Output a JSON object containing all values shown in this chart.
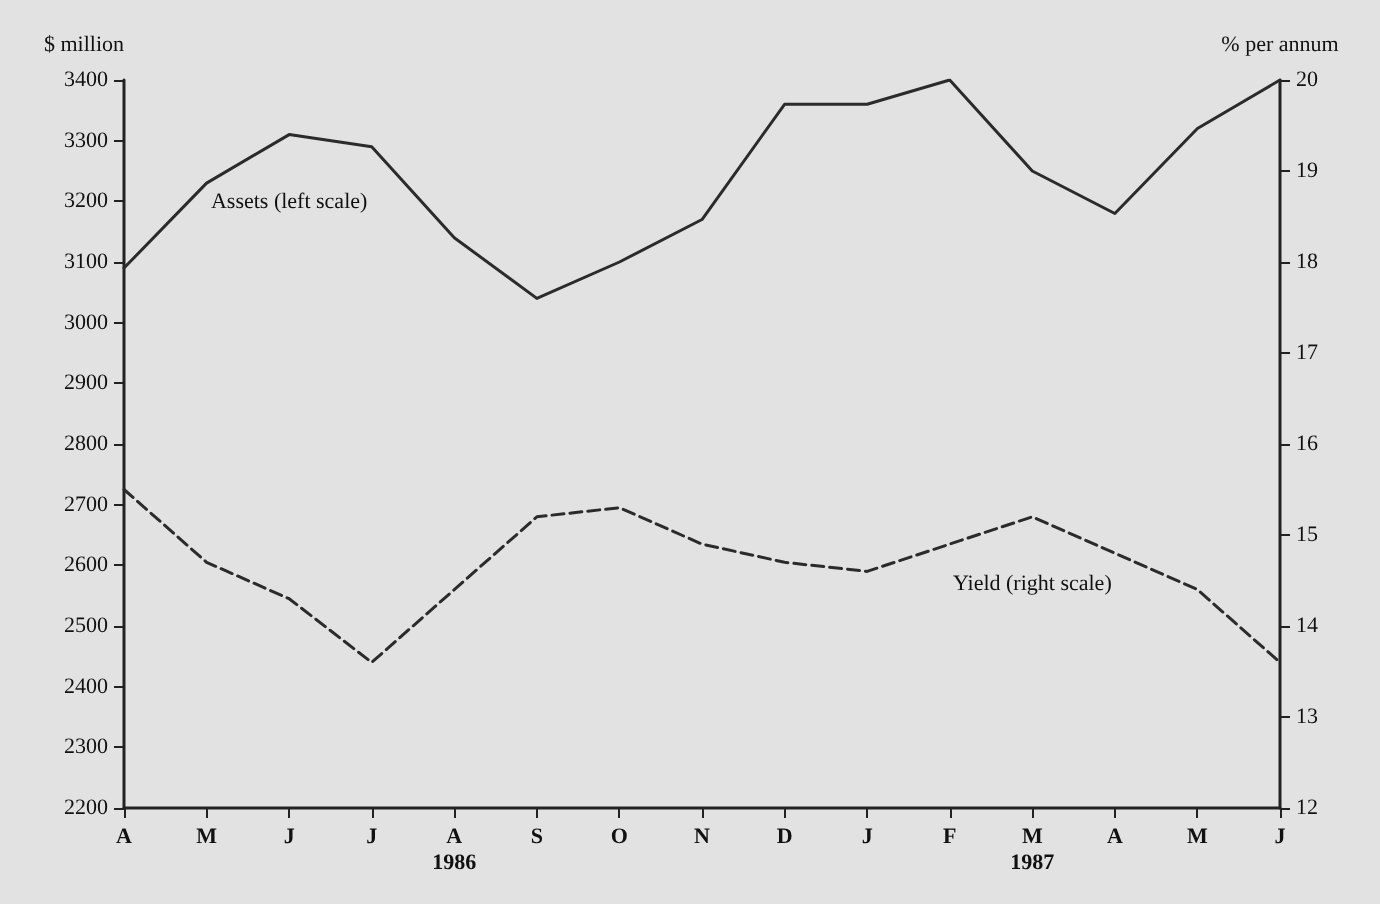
{
  "chart_data": {
    "type": "line",
    "categories": [
      "A",
      "M",
      "J",
      "J",
      "A\n1986",
      "S",
      "O",
      "N",
      "D",
      "J",
      "F",
      "M\n1987",
      "A",
      "M",
      "J"
    ],
    "series": [
      {
        "name": "Assets (left scale)",
        "color": "#2b2b2b",
        "line_style": "solid",
        "values": [
          3090,
          3230,
          3310,
          3290,
          3140,
          3040,
          3100,
          3170,
          3360,
          3360,
          3400,
          3250,
          3180,
          3320,
          3400
        ]
      },
      {
        "name": "Yield (right scale)",
        "color": "#2b2b2b",
        "line_style": "dashed",
        "axis": "y2",
        "values": [
          15.5,
          14.7,
          14.3,
          13.6,
          14.4,
          15.2,
          15.3,
          14.9,
          14.7,
          14.6,
          14.9,
          15.2,
          14.8,
          14.4,
          13.6
        ]
      }
    ],
    "ylabel": "$ million",
    "y2label": "% per annum",
    "ylim": [
      2200,
      3400
    ],
    "yticks": [
      2200,
      2300,
      2400,
      2500,
      2600,
      2700,
      2800,
      2900,
      3000,
      3100,
      3200,
      3300,
      3400
    ],
    "y2lim": [
      12,
      20
    ],
    "y2ticks": [
      12,
      13,
      14,
      15,
      16,
      17,
      18,
      19,
      20
    ],
    "grid": false,
    "marker": "none"
  }
}
